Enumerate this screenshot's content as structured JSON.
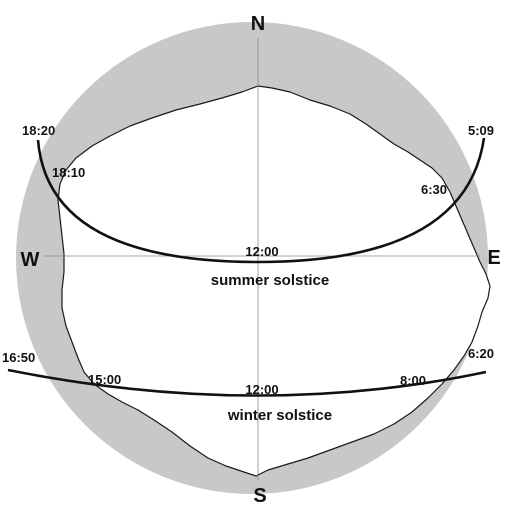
{
  "colors": {
    "sky_obstructed": "#c8c8c8",
    "sky_visible": "#ffffff",
    "outline": "#1a1a1a",
    "path": "#111111",
    "axis": "#888888"
  },
  "directions": {
    "north": "N",
    "south": "S",
    "east": "E",
    "west": "W"
  },
  "summer": {
    "label": "summer solstice",
    "sunrise_time": "5:09",
    "sunset_time": "18:20",
    "noon_time": "12:00",
    "enter_time": "18:10",
    "exit_time": "6:30"
  },
  "winter": {
    "label": "winter solstice",
    "sunrise_time": "6:20",
    "sunset_time": "16:50",
    "noon_time": "12:00",
    "enter_time": "15:00",
    "exit_time": "8:00"
  }
}
